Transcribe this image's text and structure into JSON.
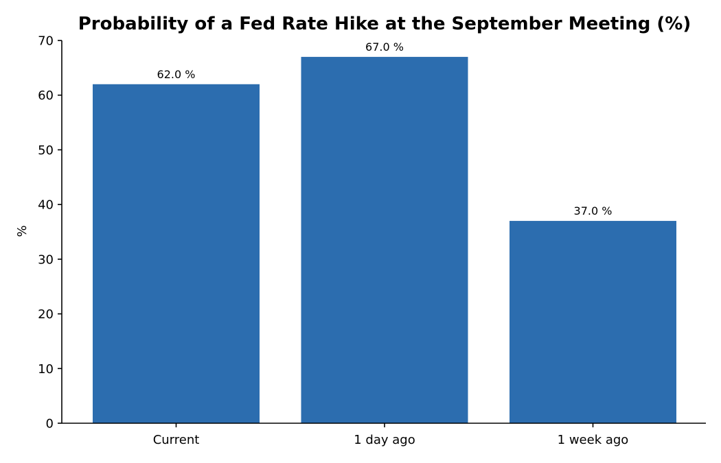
{
  "chart_data": {
    "type": "bar",
    "title": "Probability of a Fed Rate Hike at the September Meeting (%)",
    "xlabel": "",
    "ylabel": "%",
    "categories": [
      "Current",
      "1 day ago",
      "1 week ago"
    ],
    "values": [
      62.0,
      67.0,
      37.0
    ],
    "value_labels": [
      "62.0 %",
      "67.0 %",
      "37.0 %"
    ],
    "ylim": [
      0,
      70
    ],
    "yticks": [
      0,
      10,
      20,
      30,
      40,
      50,
      60,
      70
    ],
    "ytick_labels": [
      "0",
      "10",
      "20",
      "30",
      "40",
      "50",
      "60",
      "70"
    ],
    "grid": false,
    "legend": "none",
    "bar_color": "#2c6daf",
    "axis_color": "#000000"
  }
}
